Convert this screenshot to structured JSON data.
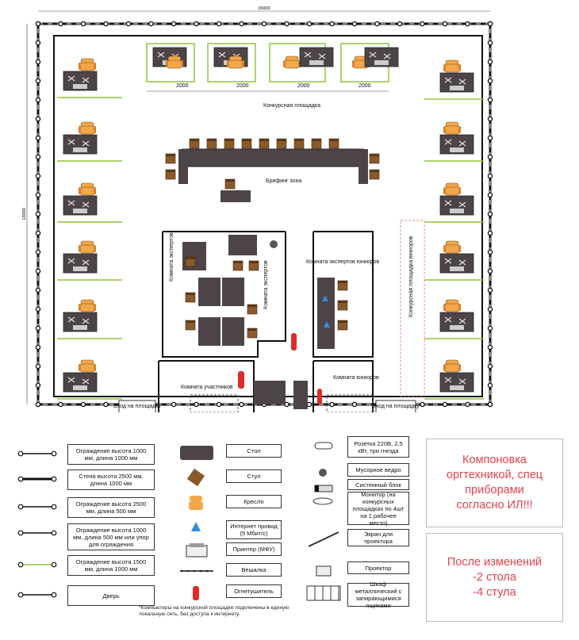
{
  "dimensions": {
    "total_width": "15000",
    "total_height": "13000",
    "gap": "2000"
  },
  "plan": {
    "competition_area": "Конкурсная площадка",
    "briefing_zone": "Брифинг зона",
    "experts_room": "Комната экспертов",
    "experts_room_2": "Комната экспертов",
    "junior_experts_room": "Комната экспертов юниоров",
    "junior_competition_area": "Конкурсная площадка юниоров",
    "participants_room": "Комната участников",
    "juniors_room": "Комната юниоров",
    "entrance_left": "Вход на площадку",
    "entrance_right": "Вход на площадку"
  },
  "legend_left": [
    {
      "label": "Ограждение высота 1000 мм, длина 1000 мм"
    },
    {
      "label": "Стена высота 2500 мм, длина 1000 мм"
    },
    {
      "label": "Ограждение высота 2500 мм, длина 500 мм"
    },
    {
      "label": "Ограждение высота 1000 мм, длина 500 мм или упор для ограждения"
    },
    {
      "label": "Ограждение высота 1500 мм, длина 1000 мм"
    },
    {
      "label": "Дверь"
    }
  ],
  "legend_mid": [
    {
      "label": "Стол",
      "icon": "table"
    },
    {
      "label": "Стул",
      "icon": "chair"
    },
    {
      "label": "Кресло",
      "icon": "armchair"
    },
    {
      "label": "Интернет провод (5 Мбит/с)",
      "icon": "internet"
    },
    {
      "label": "Принтер (МФУ)",
      "icon": "printer"
    },
    {
      "label": "Вешалка",
      "icon": "hanger"
    },
    {
      "label": "Огнетушитель",
      "icon": "extinguisher"
    }
  ],
  "legend_right": [
    {
      "label": "Розетка 220В, 2,5 кВт, три гнезда",
      "icon": "socket"
    },
    {
      "label": "Мусорное ведро",
      "icon": "trash"
    },
    {
      "label": "Системный блок",
      "icon": "system-unit"
    },
    {
      "label": "Монитор (на конкурсных площадках по 4шт на 1 рабочее место)",
      "icon": "monitor"
    },
    {
      "label": "Экран для проектора",
      "icon": "screen"
    },
    {
      "label": "Проектор",
      "icon": "projector"
    },
    {
      "label": "Шкаф металлический с запирающимися ящиками",
      "icon": "cabinet"
    }
  ],
  "footnote": "*Компьютеры на конкурсной площадке подключены в единую локальную сеть, без доступа к интернету.",
  "notes": [
    {
      "text": "Компоновка\nоргтехникой, спец\nприборами\nсогласно ИЛ!!!"
    },
    {
      "text": "После изменений\n-2 стола\n-4 стула"
    }
  ],
  "colors": {
    "wall": "#111111",
    "fence_green": "#8dc63f",
    "table": "#4d4449",
    "chair": "#8b5a2b",
    "armchair": "#f2a74b",
    "internet": "#2f8fd8",
    "extinguisher": "#e02a2a",
    "note_red": "#e0444c"
  }
}
